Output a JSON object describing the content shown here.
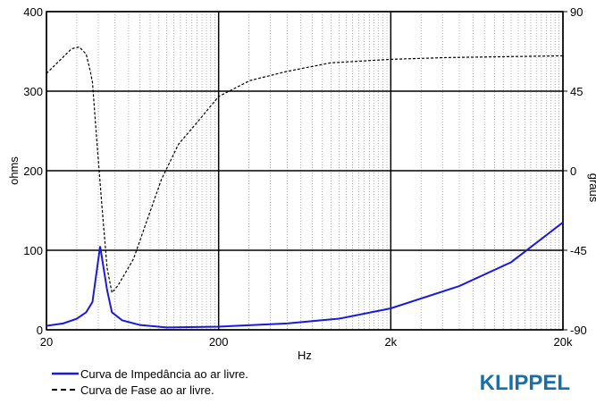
{
  "chart_data": {
    "type": "line",
    "x_scale": "log",
    "xlabel": "Hz",
    "ylabel": "ohms",
    "y2label": "graus",
    "xlim": [
      20,
      20000
    ],
    "xticks": [
      20,
      200,
      {
        "value": 2000,
        "label": "2k"
      },
      {
        "value": 20000,
        "label": "20k"
      }
    ],
    "ylim": [
      0,
      400
    ],
    "yticks": [
      0,
      100,
      200,
      300,
      400
    ],
    "y2lim": [
      -90,
      90
    ],
    "y2ticks": [
      -90,
      -45,
      0,
      45,
      90
    ],
    "grid": true,
    "minor_grid": true,
    "legend": "bottom-left",
    "series": [
      {
        "name": "Curva de Impedância ao ar livre.",
        "color": "#1a1adc",
        "style": "solid",
        "x": [
          20,
          25,
          30,
          34,
          37,
          41,
          45,
          48,
          55,
          70,
          100,
          200,
          500,
          1000,
          2000,
          5000,
          10000,
          20000
        ],
        "values": [
          5,
          8,
          14,
          22,
          35,
          105,
          50,
          22,
          12,
          6,
          3,
          4,
          8,
          14,
          27,
          55,
          85,
          135
        ]
      },
      {
        "name": "Curva de Fase ao ar livre.",
        "color": "#000000",
        "style": "dashed",
        "axis": "y2",
        "x": [
          20,
          28,
          31,
          34,
          36,
          37,
          39,
          42,
          45,
          48,
          52,
          64,
          93,
          117,
          152,
          200,
          304,
          490,
          890,
          2000,
          4200,
          20000
        ],
        "values": [
          55,
          69,
          70,
          66,
          56,
          50,
          20,
          -20,
          -55,
          -69,
          -65,
          -50,
          -5,
          15,
          28,
          42,
          51,
          56,
          61,
          63,
          64,
          65
        ]
      }
    ],
    "logo": "KLIPPEL"
  }
}
